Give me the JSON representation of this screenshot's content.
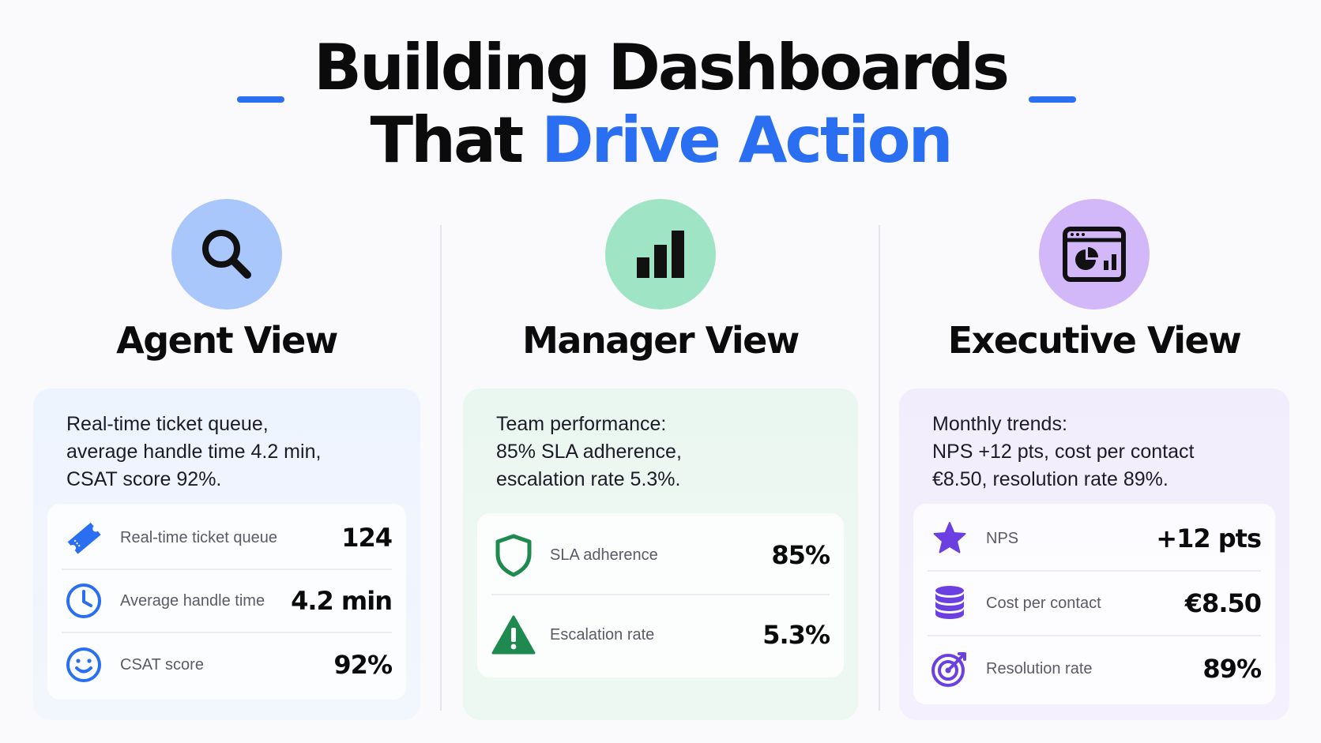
{
  "header": {
    "title_line1": "Building Dashboards",
    "title_line2_plain": "That ",
    "title_line2_accent": "Drive Action",
    "accent_color": "#2a6ef2"
  },
  "columns": [
    {
      "title": "Agent View",
      "icon": "magnifier-icon",
      "color": "#a9c7fb",
      "summary": "Real-time ticket queue,\naverage handle time 4.2 min,\nCSAT score 92%.",
      "metrics": [
        {
          "icon": "ticket-icon",
          "label": "Real-time ticket queue",
          "value": "124"
        },
        {
          "icon": "clock-icon",
          "label": "Average handle time",
          "value": "4.2 min"
        },
        {
          "icon": "smiley-icon",
          "label": "CSAT score",
          "value": "92%"
        }
      ]
    },
    {
      "title": "Manager View",
      "icon": "bar-chart-icon",
      "color": "#9fe4c4",
      "summary": "Team performance:\n85% SLA adherence,\nescalation rate 5.3%.",
      "metrics": [
        {
          "icon": "shield-icon",
          "label": "SLA adherence",
          "value": "85%"
        },
        {
          "icon": "warning-icon",
          "label": "Escalation rate",
          "value": "5.3%"
        }
      ]
    },
    {
      "title": "Executive View",
      "icon": "dashboard-window-icon",
      "color": "#d2b7f9",
      "summary": "Monthly trends:\nNPS +12 pts, cost per contact\n€8.50, resolution rate 89%.",
      "metrics": [
        {
          "icon": "star-icon",
          "label": "NPS",
          "value": "+12 pts"
        },
        {
          "icon": "coin-stack-icon",
          "label": "Cost per contact",
          "value": "€8.50"
        },
        {
          "icon": "target-icon",
          "label": "Resolution rate",
          "value": "89%"
        }
      ]
    }
  ]
}
